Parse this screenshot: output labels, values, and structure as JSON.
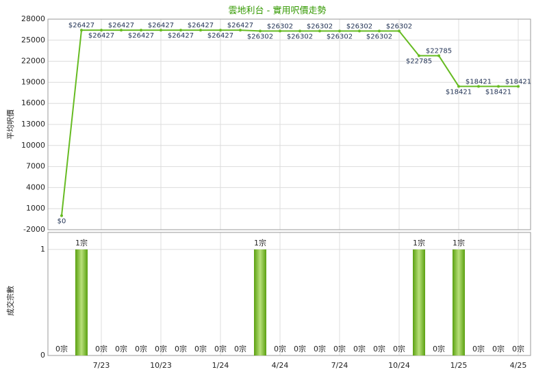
{
  "chart_data": [
    {
      "type": "line",
      "title": "雲地利台 - 實用呎價走勢",
      "y_label": "平均呎價",
      "color": "#66bb22",
      "values": [
        0,
        26427,
        26427,
        26427,
        26427,
        26427,
        26427,
        26427,
        26427,
        26427,
        26302,
        26302,
        26302,
        26302,
        26302,
        26302,
        26302,
        26302,
        22785,
        22785,
        18421,
        18421,
        18421,
        18421
      ],
      "value_labels": [
        "$0",
        "$26427",
        "$26427",
        "$26427",
        "$26427",
        "$26427",
        "$26427",
        "$26427",
        "$26427",
        "$26427",
        "$26302",
        "$26302",
        "$26302",
        "$26302",
        "$26302",
        "$26302",
        "$26302",
        "$26302",
        "$22785",
        "$22785",
        "$18421",
        "$18421",
        "$18421",
        "$18421"
      ],
      "ylim": [
        -2000,
        28000
      ],
      "yticks": [
        -2000,
        1000,
        4000,
        7000,
        10000,
        13000,
        16000,
        19000,
        22000,
        25000,
        28000
      ],
      "grid": true
    },
    {
      "type": "bar",
      "y_label": "成交宗數",
      "color": "#66bb22",
      "categories": [
        null,
        null,
        "7/23",
        null,
        null,
        "10/23",
        null,
        null,
        "1/24",
        null,
        null,
        "4/24",
        null,
        null,
        "7/24",
        null,
        null,
        "10/24",
        null,
        null,
        "1/25",
        null,
        null,
        "4/25"
      ],
      "values": [
        0,
        1,
        0,
        0,
        0,
        0,
        0,
        0,
        0,
        0,
        1,
        0,
        0,
        0,
        0,
        0,
        0,
        0,
        1,
        0,
        1,
        0,
        0,
        0
      ],
      "value_labels": [
        "0宗",
        "1宗",
        "0宗",
        "0宗",
        "0宗",
        "0宗",
        "0宗",
        "0宗",
        "0宗",
        "0宗",
        "1宗",
        "0宗",
        "0宗",
        "0宗",
        "0宗",
        "0宗",
        "0宗",
        "0宗",
        "1宗",
        "0宗",
        "1宗",
        "0宗",
        "0宗",
        "0宗"
      ],
      "ylim": [
        0,
        1.16
      ],
      "yticks": [
        0,
        1
      ],
      "grid": true
    }
  ]
}
